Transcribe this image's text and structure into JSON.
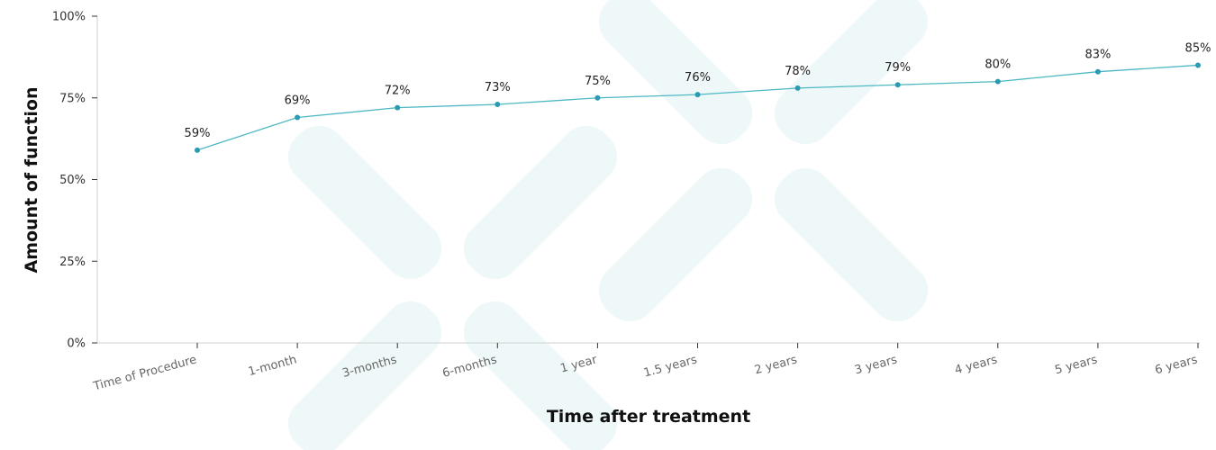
{
  "chart_data": {
    "type": "line",
    "xlabel": "Time after treatment",
    "ylabel": "Amount of function",
    "categories": [
      "Time of Procedure",
      "1-month",
      "3-months",
      "6-months",
      "1 year",
      "1.5 years",
      "2 years",
      "3 years",
      "4 years",
      "5 years",
      "6 years"
    ],
    "values": [
      59,
      69,
      72,
      73,
      75,
      76,
      78,
      79,
      80,
      83,
      85
    ],
    "data_labels": [
      "59%",
      "69%",
      "72%",
      "73%",
      "75%",
      "76%",
      "78%",
      "79%",
      "80%",
      "83%",
      "85%"
    ],
    "ylim": [
      0,
      100
    ],
    "y_ticks": [
      "0%",
      "25%",
      "50%",
      "75%",
      "100%"
    ],
    "grid": false,
    "legend": "none"
  },
  "colors": {
    "line": "#4db8c4",
    "marker": "#2a9bb0",
    "axis": "#333333",
    "watermark": "#eaf6f6"
  }
}
